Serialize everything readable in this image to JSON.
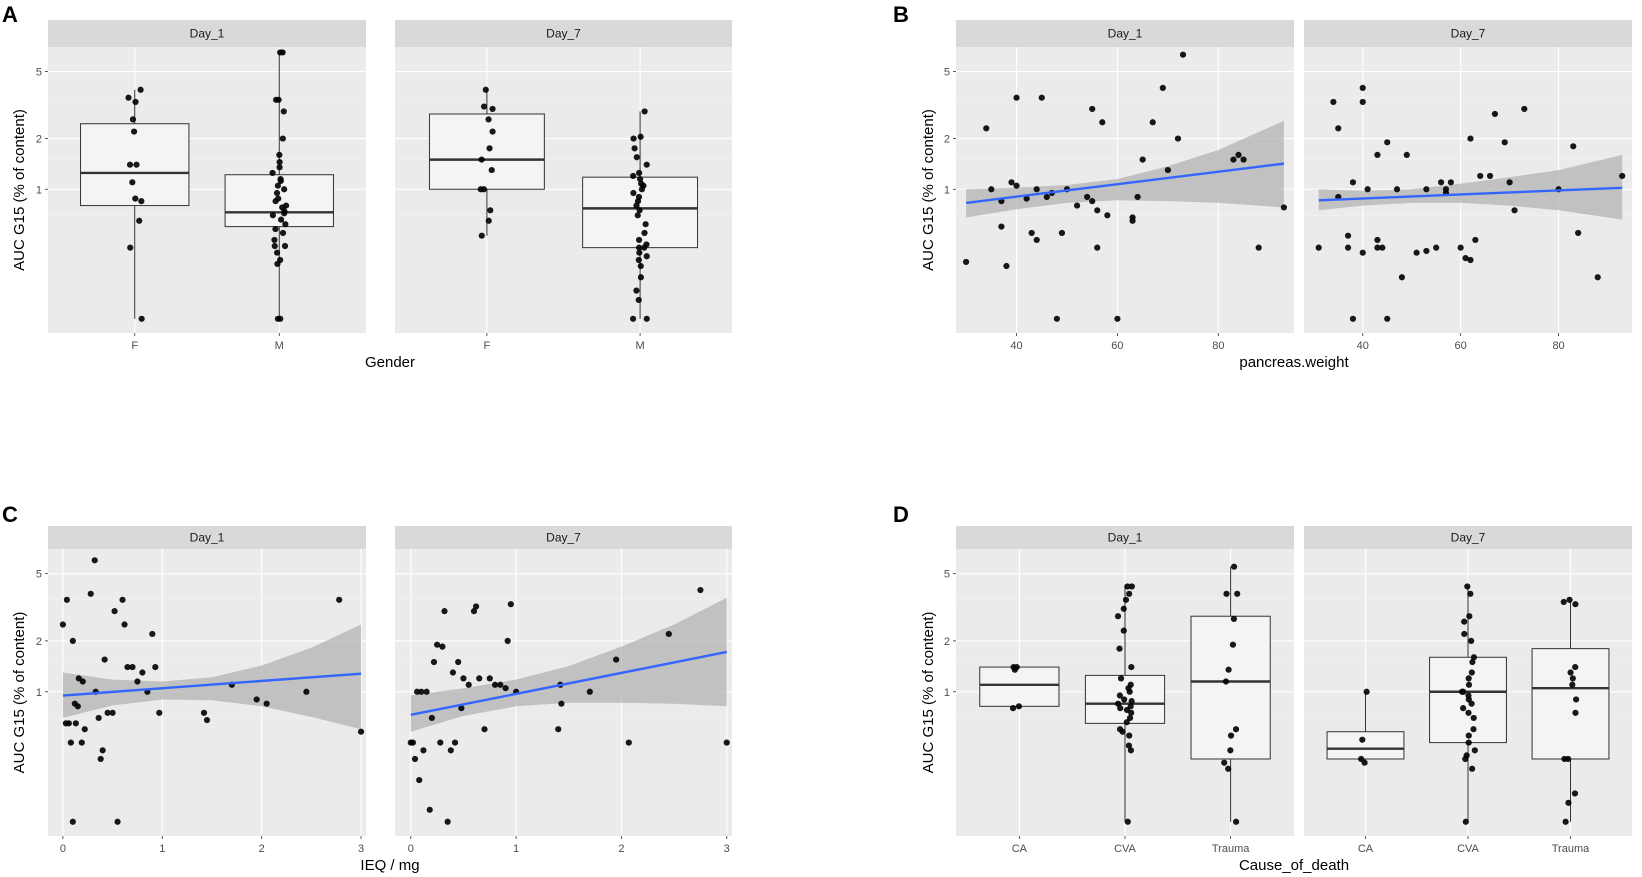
{
  "figure": {
    "ylabel": "AUC G15 (% of content)",
    "yticks": [
      1,
      2,
      5
    ],
    "facets": [
      "Day_1",
      "Day_7"
    ]
  },
  "colors": {
    "panel_bg": "#ebebeb",
    "strip_bg": "#d9d9d9",
    "grid_major": "#ffffff",
    "box_fill": "#f4f4f4",
    "point": "#000000",
    "fit_line": "#3366ff",
    "ribbon": "#b3b3b3"
  },
  "chart_data": [
    {
      "id": "A",
      "type": "box",
      "letter": "A",
      "xlabel": "Gender",
      "ylabel": "AUC G15 (% of content)",
      "categories": [
        "F",
        "M"
      ],
      "y_scale": "log",
      "ylim": [
        0.14,
        7.0
      ],
      "facets": [
        {
          "label": "Day_1",
          "boxes": [
            {
              "cat": "F",
              "q1": 0.8,
              "med": 1.25,
              "q3": 2.45,
              "lo": 0.17,
              "hi": 3.9
            },
            {
              "cat": "M",
              "q1": 0.6,
              "med": 0.73,
              "q3": 1.22,
              "lo": 0.17,
              "hi": 6.5
            }
          ],
          "points": [
            {
              "cat": "F",
              "values": [
                3.9,
                3.5,
                3.3,
                2.6,
                2.2,
                1.4,
                1.4,
                1.1,
                0.88,
                0.85,
                0.65,
                0.45,
                0.17
              ]
            },
            {
              "cat": "M",
              "values": [
                6.5,
                6.5,
                3.4,
                3.4,
                2.9,
                2.0,
                1.6,
                1.45,
                1.35,
                1.25,
                1.15,
                1.12,
                1.05,
                1.0,
                0.95,
                0.88,
                0.85,
                0.8,
                0.78,
                0.74,
                0.72,
                0.7,
                0.66,
                0.62,
                0.58,
                0.55,
                0.5,
                0.46,
                0.46,
                0.42,
                0.38,
                0.36,
                0.17,
                0.17
              ]
            }
          ]
        },
        {
          "label": "Day_7",
          "boxes": [
            {
              "cat": "F",
              "q1": 1.0,
              "med": 1.5,
              "q3": 2.8,
              "lo": 0.53,
              "hi": 3.9
            },
            {
              "cat": "M",
              "q1": 0.45,
              "med": 0.77,
              "q3": 1.18,
              "lo": 0.17,
              "hi": 2.9
            }
          ],
          "points": [
            {
              "cat": "F",
              "values": [
                3.9,
                3.1,
                3.0,
                2.6,
                2.2,
                1.75,
                1.5,
                1.3,
                1.0,
                1.0,
                0.75,
                0.65,
                0.53
              ]
            },
            {
              "cat": "M",
              "values": [
                2.9,
                2.05,
                2.0,
                1.75,
                1.55,
                1.4,
                1.25,
                1.2,
                1.15,
                1.08,
                1.05,
                1.0,
                0.95,
                0.9,
                0.85,
                0.8,
                0.75,
                0.7,
                0.62,
                0.55,
                0.5,
                0.47,
                0.45,
                0.45,
                0.42,
                0.4,
                0.38,
                0.35,
                0.3,
                0.25,
                0.22,
                0.17,
                0.17
              ]
            }
          ]
        }
      ]
    },
    {
      "id": "B",
      "type": "scatter",
      "letter": "B",
      "xlabel": "pancreas.weight",
      "ylabel": "AUC G15 (% of content)",
      "x_ticks": [
        40,
        60,
        80
      ],
      "xlim": [
        28,
        95
      ],
      "y_scale": "log",
      "ylim": [
        0.14,
        7.0
      ],
      "facets": [
        {
          "label": "Day_1",
          "x": [
            30,
            34,
            35,
            37,
            37,
            38,
            39,
            40,
            40,
            42,
            43,
            44,
            44,
            45,
            46,
            47,
            48,
            49,
            50,
            52,
            54,
            55,
            55,
            56,
            56,
            57,
            58,
            60,
            63,
            63,
            64,
            65,
            67,
            69,
            70,
            72,
            73,
            83,
            84,
            85,
            88,
            93
          ],
          "y": [
            0.37,
            2.3,
            1.0,
            0.6,
            0.85,
            0.35,
            1.1,
            1.05,
            3.5,
            0.88,
            0.55,
            0.5,
            1.0,
            3.5,
            0.9,
            0.95,
            0.17,
            0.55,
            1.0,
            0.8,
            0.9,
            0.85,
            3.0,
            0.75,
            0.45,
            2.5,
            0.7,
            0.17,
            0.65,
            0.68,
            0.9,
            1.5,
            2.5,
            4.0,
            1.3,
            2.0,
            6.3,
            1.5,
            1.6,
            1.5,
            0.45,
            0.78
          ],
          "fit": {
            "x": [
              30,
              93
            ],
            "y": [
              0.83,
              1.42
            ]
          },
          "ribbon": {
            "x": [
              30,
              40,
              50,
              60,
              70,
              80,
              93
            ],
            "lo": [
              0.68,
              0.76,
              0.83,
              0.86,
              0.85,
              0.83,
              0.78
            ],
            "hi": [
              1.0,
              1.02,
              1.06,
              1.15,
              1.37,
              1.71,
              2.55
            ]
          }
        },
        {
          "label": "Day_7",
          "x": [
            31,
            34,
            35,
            35,
            37,
            37,
            38,
            38,
            40,
            40,
            40,
            41,
            43,
            43,
            43,
            44,
            45,
            45,
            47,
            48,
            49,
            51,
            53,
            53,
            55,
            56,
            57,
            57,
            58,
            60,
            61,
            62,
            62,
            63,
            64,
            66,
            67,
            69,
            70,
            71,
            73,
            80,
            83,
            84,
            88,
            93
          ],
          "y": [
            0.45,
            3.3,
            2.3,
            0.9,
            0.45,
            0.53,
            0.17,
            1.1,
            0.42,
            3.3,
            4.0,
            1.0,
            0.5,
            0.45,
            1.6,
            0.45,
            0.17,
            1.9,
            1.0,
            0.3,
            1.6,
            0.42,
            0.43,
            1.0,
            0.45,
            1.1,
            0.95,
            1.0,
            1.1,
            0.45,
            0.39,
            0.38,
            2.0,
            0.5,
            1.2,
            1.2,
            2.8,
            1.9,
            1.1,
            0.75,
            3.0,
            1.0,
            1.8,
            0.55,
            0.3,
            1.2
          ],
          "fit": {
            "x": [
              31,
              93
            ],
            "y": [
              0.86,
              1.02
            ]
          },
          "ribbon": {
            "x": [
              31,
              40,
              50,
              60,
              70,
              80,
              93
            ],
            "lo": [
              0.75,
              0.8,
              0.83,
              0.83,
              0.8,
              0.75,
              0.66
            ],
            "hi": [
              1.0,
              0.98,
              1.0,
              1.08,
              1.18,
              1.3,
              1.6
            ]
          }
        }
      ]
    },
    {
      "id": "C",
      "type": "scatter",
      "letter": "C",
      "xlabel": "IEQ / mg",
      "ylabel": "AUC G15 (% of content)",
      "x_ticks": [
        0,
        1,
        2,
        3
      ],
      "xlim": [
        -0.15,
        3.05
      ],
      "y_scale": "log",
      "ylim": [
        0.14,
        7.0
      ],
      "facets": [
        {
          "label": "Day_1",
          "x": [
            0.0,
            0.03,
            0.04,
            0.06,
            0.08,
            0.1,
            0.1,
            0.12,
            0.13,
            0.15,
            0.16,
            0.19,
            0.2,
            0.22,
            0.28,
            0.32,
            0.33,
            0.36,
            0.38,
            0.4,
            0.42,
            0.45,
            0.5,
            0.52,
            0.55,
            0.6,
            0.62,
            0.65,
            0.7,
            0.75,
            0.8,
            0.85,
            0.9,
            0.93,
            0.97,
            1.42,
            1.45,
            1.7,
            1.95,
            2.05,
            2.45,
            2.78,
            3.0
          ],
          "y": [
            2.5,
            0.65,
            3.5,
            0.65,
            0.5,
            0.17,
            2.0,
            0.85,
            0.65,
            0.82,
            1.2,
            0.5,
            1.15,
            0.6,
            3.8,
            6.0,
            1.0,
            0.7,
            0.4,
            0.45,
            1.55,
            0.75,
            0.75,
            3.0,
            0.17,
            3.5,
            2.5,
            1.4,
            1.4,
            1.15,
            1.3,
            1.0,
            2.2,
            1.4,
            0.75,
            0.75,
            0.68,
            1.1,
            0.9,
            0.85,
            1.0,
            3.5,
            0.58
          ],
          "fit": {
            "x": [
              0,
              3
            ],
            "y": [
              0.95,
              1.28
            ]
          },
          "ribbon": {
            "x": [
              0,
              0.5,
              1,
              1.5,
              2,
              2.5,
              3
            ],
            "lo": [
              0.7,
              0.83,
              0.9,
              0.89,
              0.82,
              0.71,
              0.6
            ],
            "hi": [
              1.3,
              1.18,
              1.15,
              1.22,
              1.43,
              1.82,
              2.5
            ]
          }
        },
        {
          "label": "Day_7",
          "x": [
            0.0,
            0.02,
            0.04,
            0.06,
            0.08,
            0.1,
            0.12,
            0.15,
            0.18,
            0.2,
            0.22,
            0.25,
            0.28,
            0.3,
            0.32,
            0.35,
            0.38,
            0.4,
            0.42,
            0.45,
            0.48,
            0.5,
            0.55,
            0.6,
            0.62,
            0.65,
            0.7,
            0.75,
            0.8,
            0.85,
            0.9,
            0.92,
            0.95,
            1.0,
            1.4,
            1.42,
            1.43,
            1.7,
            1.95,
            2.07,
            2.45,
            2.75,
            3.0
          ],
          "y": [
            0.5,
            0.5,
            0.4,
            1.0,
            0.3,
            1.0,
            0.45,
            1.0,
            0.2,
            0.7,
            1.5,
            1.9,
            0.5,
            1.85,
            3.0,
            0.17,
            0.45,
            1.3,
            0.5,
            1.5,
            0.8,
            1.2,
            1.1,
            3.0,
            3.2,
            1.2,
            0.6,
            1.2,
            1.1,
            1.1,
            1.05,
            2.0,
            3.3,
            1.0,
            0.6,
            1.1,
            0.85,
            1.0,
            1.55,
            0.5,
            2.2,
            4.0,
            0.5
          ],
          "fit": {
            "x": [
              0,
              3
            ],
            "y": [
              0.73,
              1.72
            ]
          },
          "ribbon": {
            "x": [
              0,
              0.5,
              1,
              1.5,
              2,
              2.5,
              3
            ],
            "lo": [
              0.58,
              0.72,
              0.82,
              0.86,
              0.86,
              0.85,
              0.82
            ],
            "hi": [
              0.95,
              1.05,
              1.18,
              1.42,
              1.85,
              2.5,
              3.6
            ]
          }
        }
      ]
    },
    {
      "id": "D",
      "type": "box",
      "letter": "D",
      "xlabel": "Cause_of_death",
      "ylabel": "AUC G15 (% of content)",
      "categories": [
        "CA",
        "CVA",
        "Trauma"
      ],
      "y_scale": "log",
      "ylim": [
        0.14,
        7.0
      ],
      "facets": [
        {
          "label": "Day_1",
          "boxes": [
            {
              "cat": "CA",
              "q1": 0.82,
              "med": 1.1,
              "q3": 1.4,
              "lo": 0.8,
              "hi": 1.4
            },
            {
              "cat": "CVA",
              "q1": 0.65,
              "med": 0.85,
              "q3": 1.25,
              "lo": 0.17,
              "hi": 4.2
            },
            {
              "cat": "Trauma",
              "q1": 0.4,
              "med": 1.15,
              "q3": 2.8,
              "lo": 0.17,
              "hi": 5.5
            }
          ],
          "points": [
            {
              "cat": "CA",
              "values": [
                1.4,
                1.4,
                1.35,
                0.82,
                0.8
              ]
            },
            {
              "cat": "CVA",
              "values": [
                4.2,
                4.2,
                3.8,
                3.5,
                3.1,
                2.8,
                2.3,
                1.8,
                1.4,
                1.2,
                1.1,
                1.05,
                1.0,
                0.95,
                0.9,
                0.88,
                0.85,
                0.82,
                0.8,
                0.78,
                0.75,
                0.7,
                0.66,
                0.6,
                0.58,
                0.55,
                0.48,
                0.45,
                0.17
              ]
            },
            {
              "cat": "Trauma",
              "values": [
                5.5,
                3.8,
                3.8,
                2.7,
                1.9,
                1.35,
                1.15,
                0.6,
                0.55,
                0.45,
                0.38,
                0.35,
                0.17
              ]
            }
          ]
        },
        {
          "label": "Day_7",
          "boxes": [
            {
              "cat": "CA",
              "q1": 0.4,
              "med": 0.46,
              "q3": 0.58,
              "lo": 0.38,
              "hi": 1.0
            },
            {
              "cat": "CVA",
              "q1": 0.5,
              "med": 1.0,
              "q3": 1.6,
              "lo": 0.17,
              "hi": 4.2
            },
            {
              "cat": "Trauma",
              "q1": 0.4,
              "med": 1.05,
              "q3": 1.8,
              "lo": 0.17,
              "hi": 3.5
            }
          ],
          "points": [
            {
              "cat": "CA",
              "values": [
                1.0,
                0.52,
                0.4,
                0.38
              ]
            },
            {
              "cat": "CVA",
              "values": [
                4.2,
                3.8,
                2.8,
                2.6,
                2.2,
                2.0,
                1.6,
                1.5,
                1.3,
                1.2,
                1.1,
                1.0,
                1.0,
                0.95,
                0.9,
                0.85,
                0.8,
                0.75,
                0.7,
                0.6,
                0.55,
                0.5,
                0.45,
                0.42,
                0.4,
                0.35,
                0.17
              ]
            },
            {
              "cat": "Trauma",
              "values": [
                3.5,
                3.4,
                3.3,
                1.4,
                1.3,
                1.2,
                1.1,
                0.9,
                0.75,
                0.4,
                0.4,
                0.25,
                0.22,
                0.17
              ]
            }
          ]
        }
      ]
    }
  ]
}
